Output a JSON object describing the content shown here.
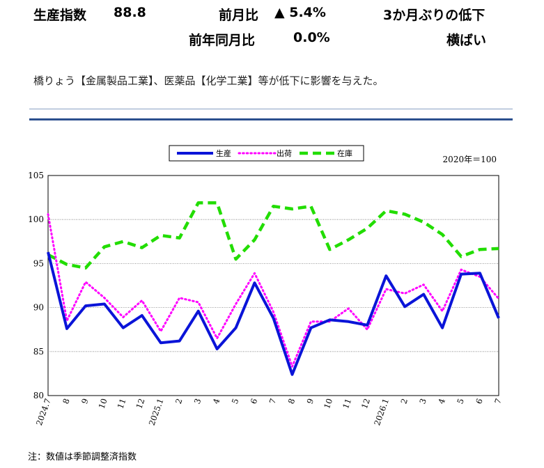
{
  "header": {
    "production_label": "生産指数",
    "production_value": "88.8",
    "mom_label": "前月比",
    "mom_value": "▲ 5.4%",
    "mom_note": "3か月ぶりの低下",
    "yoy_label": "前年同月比",
    "yoy_value": "0.0%",
    "yoy_note": "横ばい"
  },
  "comment": "橋りょう【金属製品工業】、医薬品【化学工業】等が低下に影響を与えた。",
  "footnote": "注：数値は季節調整済指数",
  "chart_data": {
    "type": "line",
    "unit_label": "2020年＝100",
    "categories": [
      "2024.7",
      "8",
      "9",
      "10",
      "11",
      "12",
      "2025.1",
      "2",
      "3",
      "4",
      "5",
      "6",
      "7",
      "8",
      "9",
      "10",
      "11",
      "12",
      "2026.1",
      "2",
      "3",
      "4",
      "5",
      "6",
      "7"
    ],
    "ylim": [
      80,
      105
    ],
    "yticks": [
      80,
      85,
      90,
      95,
      100,
      105
    ],
    "grid": true,
    "legend_position": "top-center",
    "series": [
      {
        "name": "生産",
        "color": "#0a14d8",
        "style": "solid",
        "values": [
          96.3,
          87.6,
          90.2,
          90.4,
          87.7,
          89.1,
          86.0,
          86.2,
          89.6,
          85.3,
          87.7,
          92.8,
          88.8,
          82.4,
          87.7,
          88.6,
          88.4,
          88.0,
          93.6,
          90.1,
          91.5,
          87.7,
          93.8,
          93.9,
          88.8
        ]
      },
      {
        "name": "出荷",
        "color": "#ff00ff",
        "style": "dotted",
        "values": [
          100.6,
          88.5,
          92.9,
          91.1,
          88.9,
          90.8,
          87.3,
          91.1,
          90.6,
          86.5,
          90.4,
          93.9,
          89.5,
          83.3,
          88.4,
          88.4,
          89.9,
          87.5,
          92.1,
          91.6,
          92.6,
          89.6,
          94.3,
          93.5,
          91.0
        ]
      },
      {
        "name": "在庫",
        "color": "#22dd00",
        "style": "dashed",
        "values": [
          96.0,
          94.9,
          94.5,
          96.9,
          97.5,
          96.8,
          98.2,
          97.9,
          101.9,
          101.9,
          95.5,
          97.7,
          101.5,
          101.2,
          101.5,
          96.6,
          97.7,
          99.0,
          101.0,
          100.6,
          99.7,
          98.3,
          95.8,
          96.6,
          96.7
        ]
      }
    ]
  }
}
